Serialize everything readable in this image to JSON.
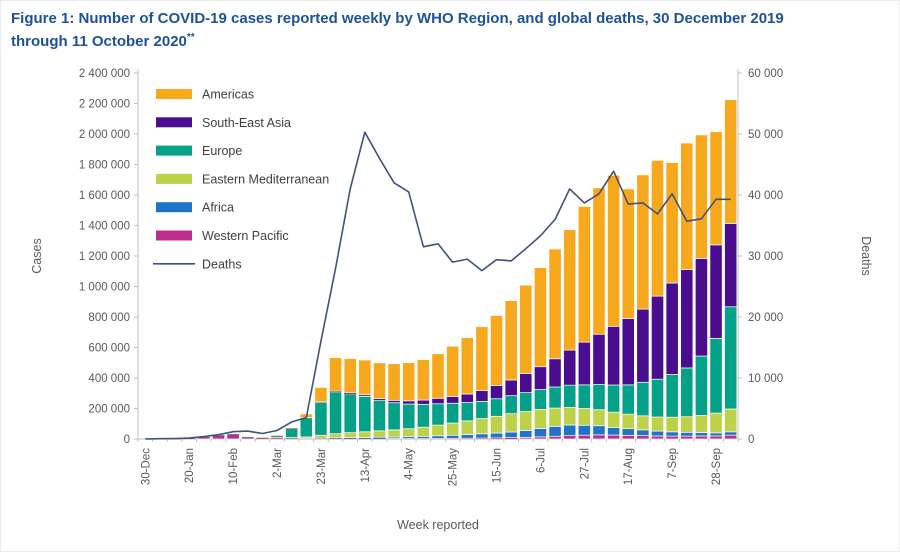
{
  "figure": {
    "title_line1": "Figure 1: Number of COVID-19 cases reported weekly by WHO Region, and global deaths, 30 December 2019",
    "title_line2": "through 11 October 2020",
    "title_superscript": "**"
  },
  "colors": {
    "title": "#1d5296",
    "axis_text": "#595959",
    "legend_text": "#404040",
    "axis_line": "#bfbfbf"
  },
  "chart_data": {
    "type": "bar",
    "stacked": true,
    "title": "Number of COVID-19 cases reported weekly by WHO Region, and global deaths, 30 December 2019 through 11 October 2020",
    "xlabel": "Week reported",
    "ylabel": "Cases",
    "ylabel_right": "Deaths",
    "gridlines": false,
    "legend_position": "top-left-inside",
    "left_axis": {
      "min": 0,
      "max": 2400000,
      "step": 200000
    },
    "right_axis": {
      "min": 0,
      "max": 60000,
      "step": 10000
    },
    "x_label_every": 3,
    "x": [
      "30-Dec",
      "6-Jan",
      "13-Jan",
      "20-Jan",
      "27-Jan",
      "3-Feb",
      "10-Feb",
      "17-Feb",
      "24-Feb",
      "2-Mar",
      "9-Mar",
      "16-Mar",
      "23-Mar",
      "30-Mar",
      "6-Apr",
      "13-Apr",
      "20-Apr",
      "27-Apr",
      "4-May",
      "11-May",
      "18-May",
      "25-May",
      "1-Jun",
      "8-Jun",
      "15-Jun",
      "22-Jun",
      "29-Jun",
      "6-Jul",
      "13-Jul",
      "20-Jul",
      "27-Jul",
      "3-Aug",
      "10-Aug",
      "17-Aug",
      "24-Aug",
      "31-Aug",
      "7-Sep",
      "14-Sep",
      "21-Sep",
      "28-Sep",
      "5-Oct"
    ],
    "series": [
      {
        "name": "Western Pacific",
        "color": "#be2c8d",
        "values": [
          0,
          100,
          300,
          2800,
          14000,
          25000,
          32000,
          12000,
          6000,
          4500,
          3100,
          2600,
          2700,
          2700,
          2500,
          2300,
          2500,
          2800,
          3200,
          3500,
          4000,
          4500,
          5000,
          6000,
          7000,
          9000,
          11000,
          14000,
          18000,
          22000,
          25000,
          27000,
          26000,
          24000,
          22000,
          20000,
          19000,
          19000,
          20000,
          20000,
          25000
        ]
      },
      {
        "name": "Africa",
        "color": "#1e75c8",
        "values": [
          0,
          0,
          0,
          0,
          0,
          0,
          0,
          0,
          0,
          0,
          100,
          1000,
          3000,
          5000,
          6000,
          7000,
          9000,
          10000,
          12000,
          14000,
          17000,
          20000,
          24000,
          28000,
          32000,
          37000,
          44000,
          55000,
          65000,
          70000,
          65000,
          60000,
          50000,
          44000,
          38000,
          32000,
          28000,
          25000,
          22000,
          20000,
          22000
        ]
      },
      {
        "name": "Eastern Mediterranean",
        "color": "#bdd248",
        "values": [
          0,
          0,
          0,
          0,
          0,
          0,
          0,
          200,
          1200,
          4500,
          6500,
          10000,
          19000,
          27000,
          33000,
          38000,
          42000,
          47000,
          52000,
          60000,
          70000,
          80000,
          90000,
          100000,
          110000,
          120000,
          125000,
          125000,
          120000,
          115000,
          110000,
          105000,
          100000,
          95000,
          92000,
          92000,
          96000,
          102000,
          112000,
          130000,
          150000
        ]
      },
      {
        "name": "Europe",
        "color": "#03a188",
        "values": [
          0,
          0,
          0,
          0,
          10,
          20,
          100,
          100,
          1500,
          12000,
          58000,
          125000,
          215000,
          272000,
          252000,
          232000,
          198000,
          178000,
          162000,
          150000,
          140000,
          130000,
          120000,
          113000,
          115000,
          118000,
          124000,
          130000,
          138000,
          146000,
          155000,
          165000,
          178000,
          192000,
          220000,
          248000,
          280000,
          320000,
          390000,
          490000,
          670000
        ]
      },
      {
        "name": "South-East Asia",
        "color": "#4a0d8f",
        "values": [
          0,
          0,
          0,
          0,
          0,
          0,
          0,
          0,
          0,
          100,
          300,
          1000,
          3500,
          7000,
          9000,
          11000,
          13000,
          16000,
          21000,
          28000,
          36000,
          44000,
          56000,
          70000,
          86000,
          103000,
          125000,
          150000,
          185000,
          230000,
          280000,
          330000,
          385000,
          435000,
          480000,
          545000,
          600000,
          645000,
          640000,
          613000,
          546000
        ]
      },
      {
        "name": "Americas",
        "color": "#f8a81d",
        "values": [
          0,
          0,
          0,
          0,
          0,
          0,
          0,
          0,
          100,
          500,
          3000,
          25000,
          95000,
          220000,
          225000,
          228000,
          235000,
          240000,
          250000,
          265000,
          292000,
          330000,
          370000,
          420000,
          460000,
          520000,
          580000,
          650000,
          720000,
          790000,
          890000,
          960000,
          990000,
          850000,
          880000,
          890000,
          790000,
          830000,
          810000,
          742000,
          812000
        ]
      }
    ],
    "line_series": {
      "name": "Deaths",
      "axis": "right",
      "color": "#3f5278",
      "values": [
        10,
        50,
        80,
        150,
        400,
        700,
        1200,
        1300,
        900,
        1400,
        2800,
        3500,
        16000,
        28000,
        41000,
        50300,
        46000,
        42000,
        40500,
        31500,
        32000,
        29000,
        29500,
        27600,
        29400,
        29200,
        31200,
        33300,
        36000,
        41000,
        38700,
        40200,
        43900,
        38500,
        38700,
        36900,
        40200,
        35700,
        36100,
        39300,
        39300
      ]
    },
    "legend_order": [
      "Americas",
      "South-East Asia",
      "Europe",
      "Eastern Mediterranean",
      "Africa",
      "Western Pacific",
      "Deaths"
    ]
  }
}
